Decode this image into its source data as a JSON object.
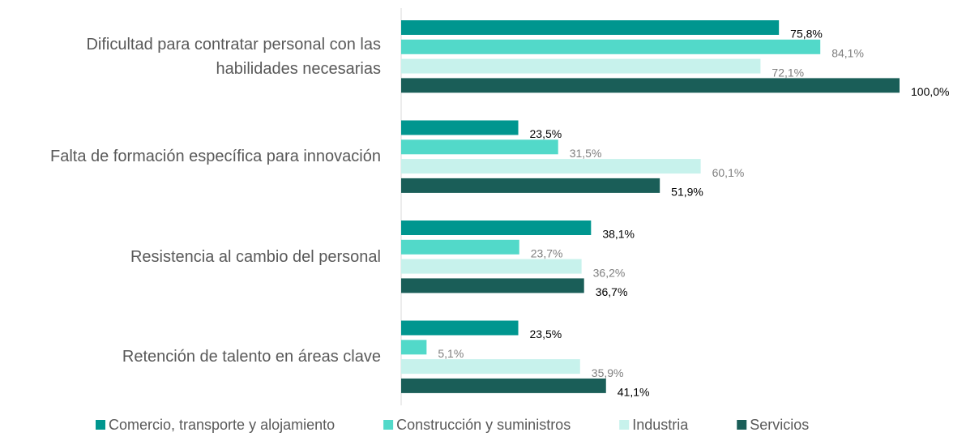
{
  "chart_data": {
    "type": "barh",
    "categories": [
      "Dificultad para contratar personal con las habilidades necesarias",
      "Falta de formación específica para innovación",
      "Resistencia al cambio del personal",
      "Retención de talento en áreas clave"
    ],
    "series": [
      {
        "name": "Comercio, transporte y alojamiento",
        "color": "#00968f",
        "values": [
          75.8,
          23.5,
          38.1,
          23.5
        ],
        "value_labels": [
          "75,8%",
          "23,5%",
          "38,1%",
          "23,5%"
        ]
      },
      {
        "name": "Construcción y suministros",
        "color": "#52d9c9",
        "values": [
          84.1,
          31.5,
          23.7,
          5.1
        ],
        "value_labels": [
          "84,1%",
          "31,5%",
          "23,7%",
          "5,1%"
        ]
      },
      {
        "name": "Industria",
        "color": "#c7f2ec",
        "values": [
          72.1,
          60.1,
          36.2,
          35.9
        ],
        "value_labels": [
          "72,1%",
          "60,1%",
          "36,2%",
          "35,9%"
        ]
      },
      {
        "name": "Servicios",
        "color": "#1a5e58",
        "values": [
          100.0,
          51.9,
          36.7,
          41.1
        ],
        "value_labels": [
          "100,0%",
          "51,9%",
          "36,7%",
          "41,1%"
        ]
      }
    ],
    "xlim": [
      0,
      100
    ]
  }
}
